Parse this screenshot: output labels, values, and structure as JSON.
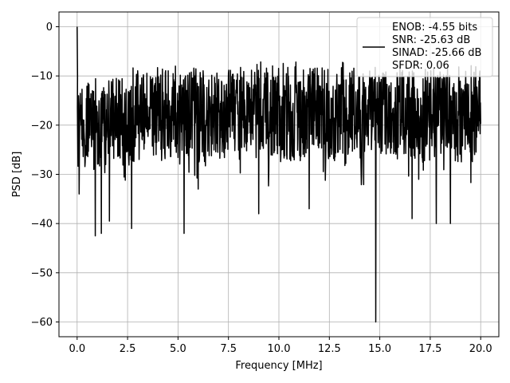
{
  "chart_data": {
    "type": "line",
    "title": "",
    "xlabel": "Frequency [MHz]",
    "ylabel": "PSD [dB]",
    "xlim": [
      -0.9,
      20.9
    ],
    "ylim": [
      -63,
      3
    ],
    "x_ticks": [
      0,
      2.5,
      5,
      7.5,
      10,
      12.5,
      15,
      17.5,
      20
    ],
    "x_tick_labels": [
      "0.0",
      "2.5",
      "5.0",
      "7.5",
      "10.0",
      "12.5",
      "15.0",
      "17.5",
      "20.0"
    ],
    "y_ticks": [
      0,
      -10,
      -20,
      -30,
      -40,
      -50,
      -60
    ],
    "y_tick_labels": [
      "0",
      "−10",
      "−20",
      "−30",
      "−40",
      "−50",
      "−60"
    ],
    "grid": true,
    "legend_position": "top-right",
    "series": [
      {
        "name": "ENOB: -4.55 bits\nSNR: -25.63 dB\nSINAD: -25.66 dB\nSFDR: 0.06",
        "color": "#000000",
        "x_range": [
          0,
          20
        ],
        "description_values": {
          "max": 0,
          "typical_upper": -8,
          "typical_lower": -26,
          "notable_dips": [
            {
              "x": 0.1,
              "y": -34
            },
            {
              "x": 0.9,
              "y": -42.5
            },
            {
              "x": 1.2,
              "y": -42
            },
            {
              "x": 1.6,
              "y": -39.5
            },
            {
              "x": 2.7,
              "y": -41
            },
            {
              "x": 5.3,
              "y": -42
            },
            {
              "x": 6.0,
              "y": -33
            },
            {
              "x": 9.0,
              "y": -38
            },
            {
              "x": 11.5,
              "y": -37
            },
            {
              "x": 14.8,
              "y": -60
            },
            {
              "x": 16.6,
              "y": -39
            },
            {
              "x": 17.8,
              "y": -40
            },
            {
              "x": 18.5,
              "y": -40
            }
          ]
        }
      }
    ]
  }
}
